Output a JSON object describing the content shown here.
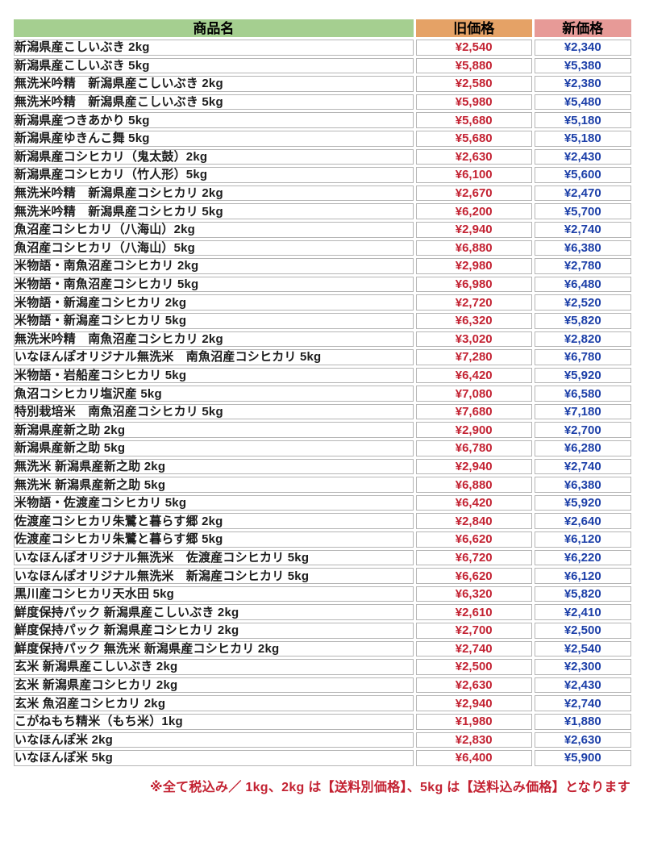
{
  "colors": {
    "header_product_bg": "#a5cf90",
    "header_old_bg": "#e5a266",
    "header_new_bg": "#e79a97",
    "old_price_text": "#c32232",
    "new_price_text": "#1c3fa8",
    "cell_border": "#b5b5b5",
    "note_text": "#c32232"
  },
  "table": {
    "headers": {
      "product": "商品名",
      "old_price": "旧価格",
      "new_price": "新価格"
    },
    "rows": [
      {
        "name": "新潟県産こしいぶき 2kg",
        "old": "¥2,540",
        "new": "¥2,340"
      },
      {
        "name": "新潟県産こしいぶき 5kg",
        "old": "¥5,880",
        "new": "¥5,380"
      },
      {
        "name": "無洗米吟精　新潟県産こしいぶき 2kg",
        "old": "¥2,580",
        "new": "¥2,380"
      },
      {
        "name": "無洗米吟精　新潟県産こしいぶき 5kg",
        "old": "¥5,980",
        "new": "¥5,480"
      },
      {
        "name": "新潟県産つきあかり 5kg",
        "old": "¥5,680",
        "new": "¥5,180"
      },
      {
        "name": "新潟県産ゆきんこ舞 5kg",
        "old": "¥5,680",
        "new": "¥5,180"
      },
      {
        "name": "新潟県産コシヒカリ（鬼太鼓）2kg",
        "old": "¥2,630",
        "new": "¥2,430"
      },
      {
        "name": "新潟県産コシヒカリ（竹人形）5kg",
        "old": "¥6,100",
        "new": "¥5,600"
      },
      {
        "name": "無洗米吟精　新潟県産コシヒカリ 2kg",
        "old": "¥2,670",
        "new": "¥2,470"
      },
      {
        "name": "無洗米吟精　新潟県産コシヒカリ 5kg",
        "old": "¥6,200",
        "new": "¥5,700"
      },
      {
        "name": "魚沼産コシヒカリ（八海山）2kg",
        "old": "¥2,940",
        "new": "¥2,740"
      },
      {
        "name": "魚沼産コシヒカリ（八海山）5kg",
        "old": "¥6,880",
        "new": "¥6,380"
      },
      {
        "name": "米物語・南魚沼産コシヒカリ 2kg",
        "old": "¥2,980",
        "new": "¥2,780"
      },
      {
        "name": "米物語・南魚沼産コシヒカリ 5kg",
        "old": "¥6,980",
        "new": "¥6,480"
      },
      {
        "name": "米物語・新潟産コシヒカリ 2kg",
        "old": "¥2,720",
        "new": "¥2,520"
      },
      {
        "name": "米物語・新潟産コシヒカリ 5kg",
        "old": "¥6,320",
        "new": "¥5,820"
      },
      {
        "name": "無洗米吟精　南魚沼産コシヒカリ 2kg",
        "old": "¥3,020",
        "new": "¥2,820"
      },
      {
        "name": "いなほんぽオリジナル無洗米　南魚沼産コシヒカリ 5kg",
        "old": "¥7,280",
        "new": "¥6,780"
      },
      {
        "name": "米物語・岩船産コシヒカリ 5kg",
        "old": "¥6,420",
        "new": "¥5,920"
      },
      {
        "name": "魚沼コシヒカリ塩沢産 5kg",
        "old": "¥7,080",
        "new": "¥6,580"
      },
      {
        "name": "特別栽培米　南魚沼産コシヒカリ 5kg",
        "old": "¥7,680",
        "new": "¥7,180"
      },
      {
        "name": "新潟県産新之助 2kg",
        "old": "¥2,900",
        "new": "¥2,700"
      },
      {
        "name": "新潟県産新之助 5kg",
        "old": "¥6,780",
        "new": "¥6,280"
      },
      {
        "name": "無洗米 新潟県産新之助 2kg",
        "old": "¥2,940",
        "new": "¥2,740"
      },
      {
        "name": "無洗米 新潟県産新之助 5kg",
        "old": "¥6,880",
        "new": "¥6,380"
      },
      {
        "name": "米物語・佐渡産コシヒカリ 5kg",
        "old": "¥6,420",
        "new": "¥5,920"
      },
      {
        "name": "佐渡産コシヒカリ朱鷺と暮らす郷 2kg",
        "old": "¥2,840",
        "new": "¥2,640"
      },
      {
        "name": "佐渡産コシヒカリ朱鷺と暮らす郷 5kg",
        "old": "¥6,620",
        "new": "¥6,120"
      },
      {
        "name": "いなほんぽオリジナル無洗米　佐渡産コシヒカリ 5kg",
        "old": "¥6,720",
        "new": "¥6,220"
      },
      {
        "name": "いなほんぽオリジナル無洗米　新潟産コシヒカリ 5kg",
        "old": "¥6,620",
        "new": "¥6,120"
      },
      {
        "name": "黒川産コシヒカリ天水田 5kg",
        "old": "¥6,320",
        "new": "¥5,820"
      },
      {
        "name": "鮮度保持パック 新潟県産こしいぶき 2kg",
        "old": "¥2,610",
        "new": "¥2,410"
      },
      {
        "name": "鮮度保持パック 新潟県産コシヒカリ 2kg",
        "old": "¥2,700",
        "new": "¥2,500"
      },
      {
        "name": "鮮度保持パック 無洗米 新潟県産コシヒカリ 2kg",
        "old": "¥2,740",
        "new": "¥2,540"
      },
      {
        "name": "玄米 新潟県産こしいぶき 2kg",
        "old": "¥2,500",
        "new": "¥2,300"
      },
      {
        "name": "玄米 新潟県産コシヒカリ 2kg",
        "old": "¥2,630",
        "new": "¥2,430"
      },
      {
        "name": "玄米 魚沼産コシヒカリ 2kg",
        "old": "¥2,940",
        "new": "¥2,740"
      },
      {
        "name": "こがねもち精米（もち米）1kg",
        "old": "¥1,980",
        "new": "¥1,880"
      },
      {
        "name": "いなほんぽ米 2kg",
        "old": "¥2,830",
        "new": "¥2,630"
      },
      {
        "name": "いなほんぽ米 5kg",
        "old": "¥6,400",
        "new": "¥5,900"
      }
    ]
  },
  "footer": {
    "note": "※全て税込み／ 1kg、2kg は【送料別価格】、5kg は【送料込み価格】となります"
  }
}
